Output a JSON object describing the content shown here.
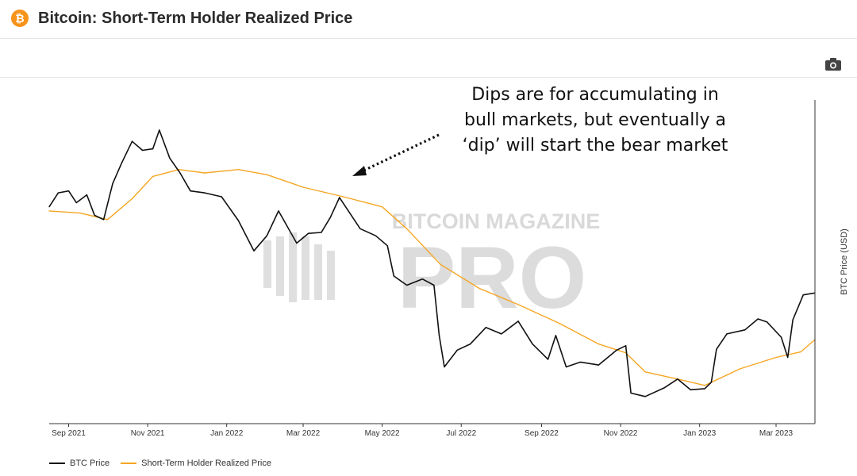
{
  "header": {
    "icon_glyph": "₿",
    "title": "Bitcoin: Short-Term Holder Realized Price"
  },
  "toolbar": {
    "camera_icon": "camera-icon"
  },
  "annotation": {
    "lines": [
      "Dips are for accumulating in",
      "bull markets, but eventually a",
      "‘dip’ will start the bear market"
    ]
  },
  "watermark": {
    "top": "BITCOIN MAGAZINE",
    "bottom": "PRO"
  },
  "colors": {
    "btc": "#111111",
    "sth": "#f5a623",
    "axis": "#333333"
  },
  "chart_data": {
    "type": "line",
    "title": "Bitcoin: Short-Term Holder Realized Price",
    "xlabel": "",
    "ylabel": "BTC Price (USD)",
    "y_scale": "log",
    "ylim": [
      14000,
      80000
    ],
    "xlim": [
      "2021-08-17",
      "2023-03-31"
    ],
    "x_tick_labels": [
      "Sep 2021",
      "Nov 2021",
      "Jan 2022",
      "Mar 2022",
      "May 2022",
      "Jul 2022",
      "Sep 2022",
      "Nov 2022",
      "Jan 2023",
      "Mar 2023"
    ],
    "x_tick_dates": [
      "2021-09-01",
      "2021-11-01",
      "2022-01-01",
      "2022-03-01",
      "2022-05-01",
      "2022-07-01",
      "2022-09-01",
      "2022-11-01",
      "2023-01-01",
      "2023-03-01"
    ],
    "legend": [
      "BTC Price",
      "Short-Term Holder Realized Price"
    ],
    "legend_position": "bottom-left",
    "series": [
      {
        "name": "BTC Price",
        "color": "#111111",
        "x": [
          "2021-08-17",
          "2021-08-24",
          "2021-09-01",
          "2021-09-07",
          "2021-09-15",
          "2021-09-21",
          "2021-09-28",
          "2021-10-05",
          "2021-10-12",
          "2021-10-20",
          "2021-10-28",
          "2021-11-05",
          "2021-11-10",
          "2021-11-18",
          "2021-11-26",
          "2021-12-04",
          "2021-12-15",
          "2021-12-28",
          "2022-01-10",
          "2022-01-22",
          "2022-02-01",
          "2022-02-10",
          "2022-02-24",
          "2022-03-05",
          "2022-03-15",
          "2022-03-22",
          "2022-03-29",
          "2022-04-06",
          "2022-04-14",
          "2022-04-26",
          "2022-05-05",
          "2022-05-10",
          "2022-05-20",
          "2022-06-01",
          "2022-06-10",
          "2022-06-14",
          "2022-06-18",
          "2022-06-28",
          "2022-07-08",
          "2022-07-20",
          "2022-08-01",
          "2022-08-14",
          "2022-08-25",
          "2022-09-06",
          "2022-09-12",
          "2022-09-20",
          "2022-10-01",
          "2022-10-15",
          "2022-10-29",
          "2022-11-05",
          "2022-11-09",
          "2022-11-20",
          "2022-12-05",
          "2022-12-15",
          "2022-12-25",
          "2023-01-05",
          "2023-01-10",
          "2023-01-14",
          "2023-01-22",
          "2023-02-05",
          "2023-02-15",
          "2023-02-22",
          "2023-03-05",
          "2023-03-10",
          "2023-03-14",
          "2023-03-22",
          "2023-03-31"
        ],
        "values": [
          45000,
          48500,
          49000,
          46000,
          48000,
          43000,
          42000,
          51000,
          57000,
          64000,
          61000,
          61500,
          68000,
          58500,
          54000,
          49000,
          48500,
          47500,
          41800,
          35500,
          38500,
          44000,
          37000,
          39000,
          39200,
          42500,
          47300,
          43500,
          40000,
          38500,
          36500,
          31000,
          29500,
          30500,
          29500,
          22500,
          19000,
          20800,
          21500,
          23500,
          22700,
          24300,
          21500,
          19800,
          22500,
          19000,
          19500,
          19200,
          20800,
          21300,
          16500,
          16200,
          17000,
          17800,
          16800,
          16900,
          17500,
          20900,
          22700,
          23200,
          24600,
          24200,
          22300,
          20000,
          24500,
          28000,
          28300
        ]
      },
      {
        "name": "Short-Term Holder Realized Price",
        "color": "#f5a623",
        "x": [
          "2021-08-17",
          "2021-09-10",
          "2021-10-01",
          "2021-10-20",
          "2021-11-05",
          "2021-11-25",
          "2021-12-15",
          "2022-01-10",
          "2022-02-01",
          "2022-03-01",
          "2022-04-01",
          "2022-05-01",
          "2022-05-20",
          "2022-06-15",
          "2022-07-15",
          "2022-08-15",
          "2022-09-15",
          "2022-10-15",
          "2022-11-05",
          "2022-11-20",
          "2022-12-15",
          "2023-01-05",
          "2023-02-01",
          "2023-03-01",
          "2023-03-20",
          "2023-03-31"
        ],
        "values": [
          44000,
          43500,
          42000,
          47000,
          53000,
          55000,
          54000,
          55000,
          53500,
          50000,
          47500,
          45000,
          40000,
          33000,
          29000,
          26500,
          24000,
          21500,
          20500,
          18500,
          17800,
          17200,
          18800,
          20000,
          20600,
          22000
        ]
      }
    ]
  }
}
